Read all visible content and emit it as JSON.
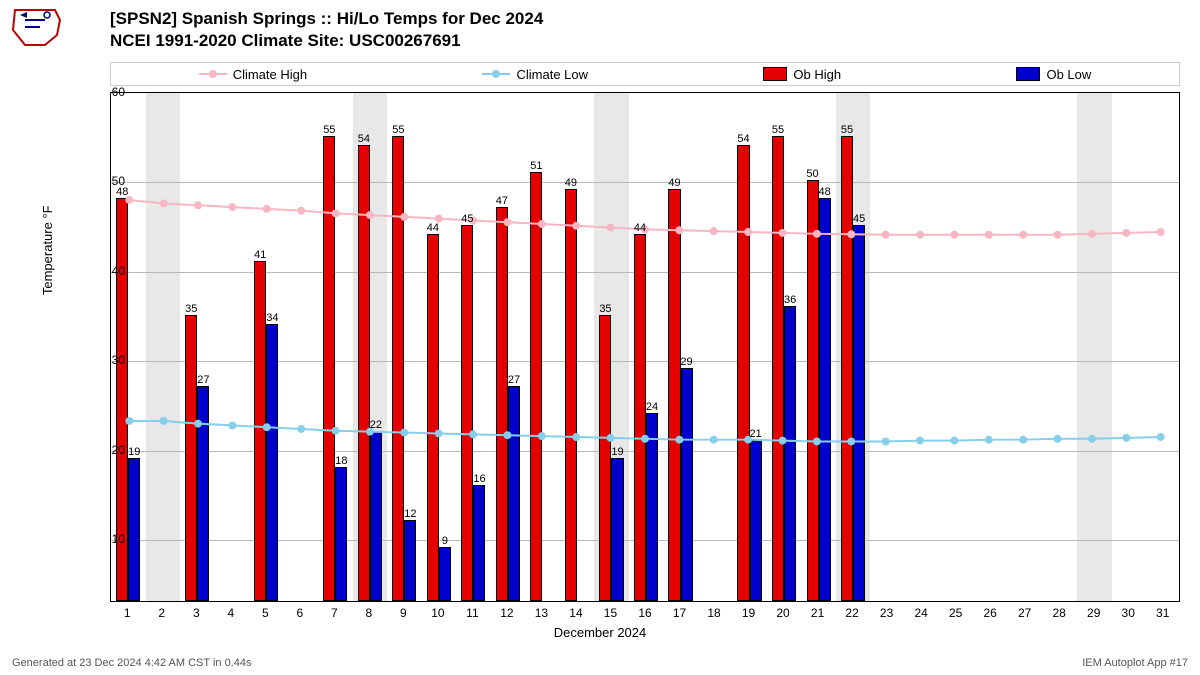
{
  "title": {
    "line1": "[SPSN2] Spanish Springs :: Hi/Lo Temps for Dec 2024",
    "line2": "NCEI 1991-2020 Climate Site: USC00267691"
  },
  "legend": {
    "climate_high": "Climate High",
    "climate_low": "Climate Low",
    "ob_high": "Ob High",
    "ob_low": "Ob Low"
  },
  "colors": {
    "climate_high": "#f7b6c2",
    "climate_low": "#87ceeb",
    "ob_high": "#e50000",
    "ob_low": "#0000cc",
    "weekend_band": "#e8e8e8",
    "grid": "#b8b8b8",
    "text": "#000000"
  },
  "chart": {
    "type": "bar+line",
    "xlabel": "December 2024",
    "ylabel": "Temperature °F",
    "ylim": [
      3,
      60
    ],
    "yticks": [
      10,
      20,
      30,
      40,
      50,
      60
    ],
    "days": [
      1,
      2,
      3,
      4,
      5,
      6,
      7,
      8,
      9,
      10,
      11,
      12,
      13,
      14,
      15,
      16,
      17,
      18,
      19,
      20,
      21,
      22,
      23,
      24,
      25,
      26,
      27,
      28,
      29,
      30,
      31
    ],
    "weekend_bands": [
      [
        1.5,
        2.5
      ],
      [
        7.5,
        8.5
      ],
      [
        14.5,
        15.5
      ],
      [
        21.5,
        22.5
      ],
      [
        28.5,
        29.5
      ]
    ],
    "bar_width_ratio": 0.35,
    "ob_high": [
      48,
      null,
      35,
      null,
      41,
      null,
      55,
      54,
      55,
      44,
      45,
      47,
      51,
      49,
      35,
      44,
      49,
      null,
      54,
      55,
      50,
      55,
      null,
      null,
      null,
      null,
      null,
      null,
      null,
      null,
      null
    ],
    "ob_low": [
      19,
      null,
      27,
      null,
      34,
      null,
      18,
      22,
      12,
      9,
      16,
      27,
      null,
      null,
      19,
      24,
      29,
      null,
      21,
      36,
      48,
      45,
      null,
      null,
      null,
      null,
      null,
      null,
      null,
      null,
      null
    ],
    "climate_high": [
      48,
      47.6,
      47.4,
      47.2,
      47,
      46.8,
      46.5,
      46.3,
      46.1,
      45.9,
      45.7,
      45.5,
      45.3,
      45.1,
      44.9,
      44.7,
      44.6,
      44.5,
      44.4,
      44.3,
      44.2,
      44.15,
      44.1,
      44.1,
      44.1,
      44.1,
      44.1,
      44.1,
      44.2,
      44.3,
      44.4
    ],
    "climate_low": [
      23.2,
      23.2,
      22.9,
      22.7,
      22.5,
      22.3,
      22.1,
      22,
      21.9,
      21.8,
      21.7,
      21.6,
      21.5,
      21.4,
      21.3,
      21.2,
      21.1,
      21.1,
      21.1,
      21,
      20.9,
      20.9,
      20.9,
      21,
      21,
      21.1,
      21.1,
      21.2,
      21.2,
      21.3,
      21.4
    ]
  },
  "footer": {
    "left": "Generated at 23 Dec 2024 4:42 AM CST in 0.44s",
    "right": "IEM Autoplot App #17"
  }
}
